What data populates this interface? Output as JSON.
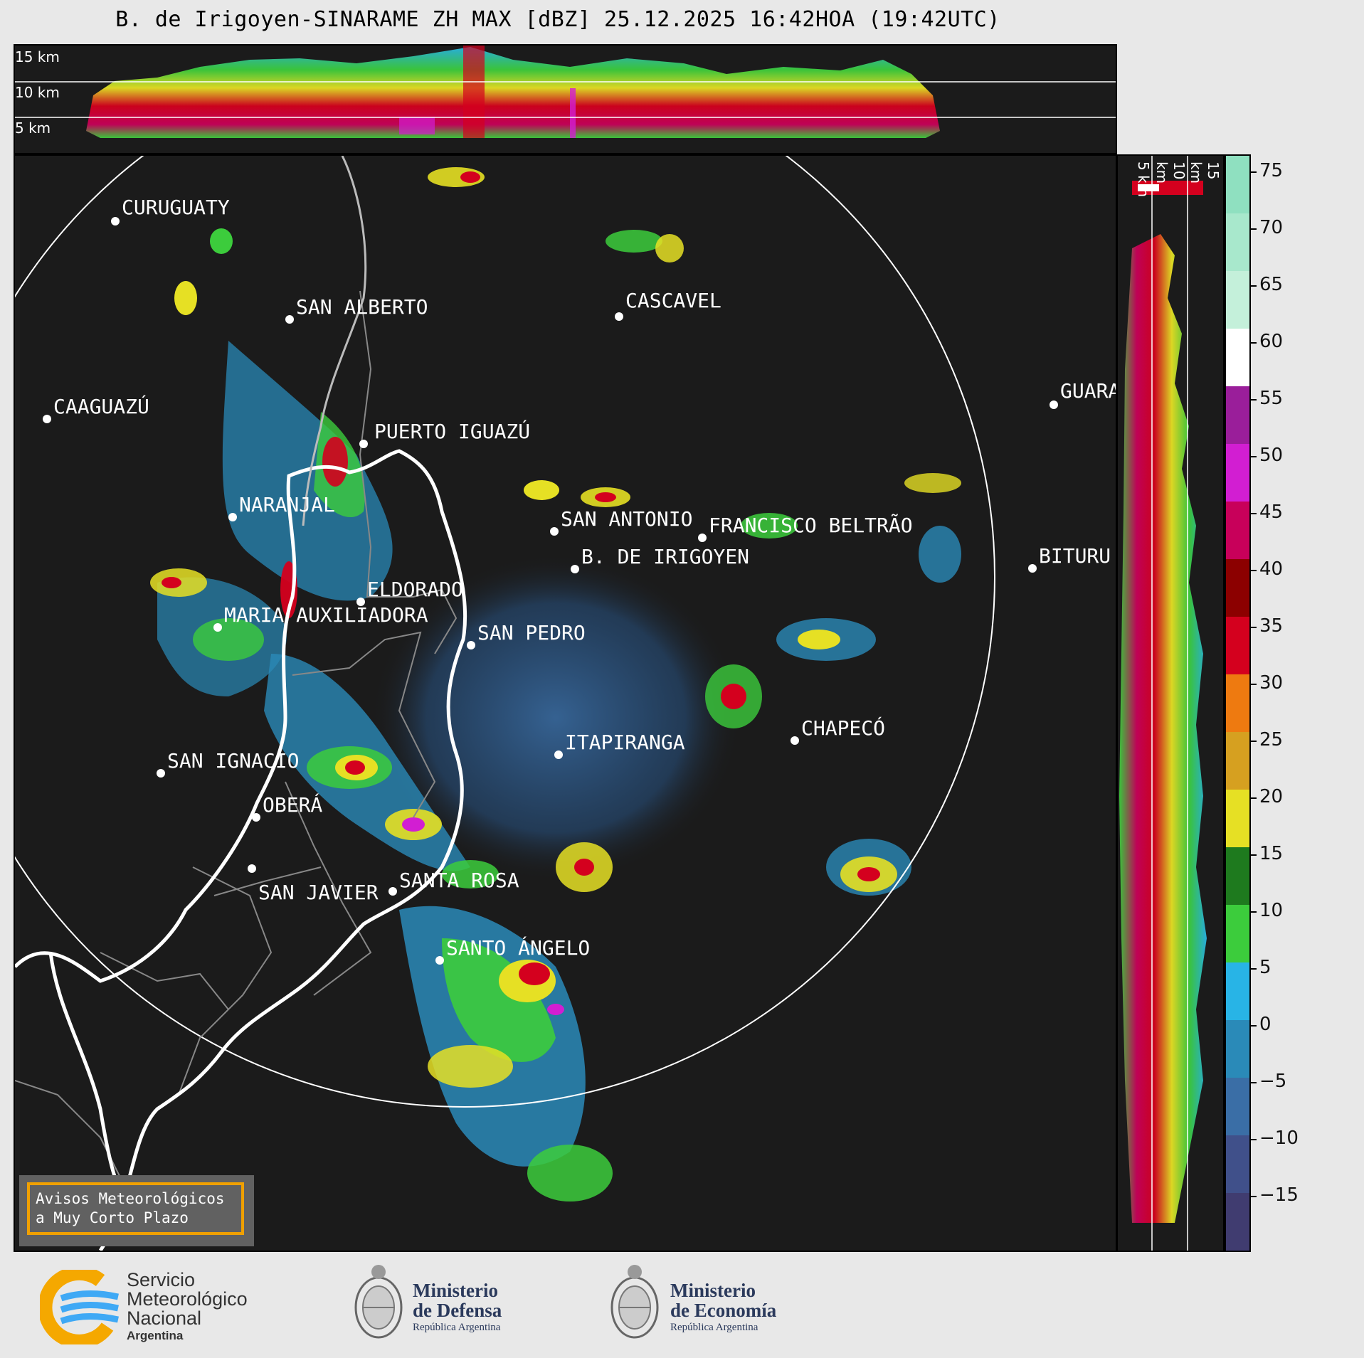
{
  "title": "B. de Irigoyen-SINARAME ZH MAX [dBZ] 25.12.2025 16:42HOA (19:42UTC)",
  "top_section_km": [
    "15 km",
    "10 km",
    "5 km"
  ],
  "right_section_km": [
    "5 km",
    "10 km",
    "15 km"
  ],
  "colorbar": {
    "unit": "dBZ",
    "ticks": [
      "75",
      "70",
      "65",
      "60",
      "55",
      "50",
      "45",
      "40",
      "35",
      "30",
      "25",
      "20",
      "15",
      "10",
      "5",
      "0",
      "−5",
      "−10",
      "−15"
    ],
    "colors": [
      "#8fe0c0",
      "#a8e8cc",
      "#c4f0da",
      "#ffffff",
      "#9a1e9a",
      "#d21ed2",
      "#c8005a",
      "#8c0000",
      "#d4001e",
      "#ee7a10",
      "#d6a020",
      "#e6e024",
      "#1e7a1e",
      "#3ccc3c",
      "#28b4e6",
      "#2a8ab8",
      "#3a6ea6",
      "#40508a",
      "#403c70"
    ]
  },
  "cities": [
    {
      "name": "CURUGUATY"
    },
    {
      "name": "SAN ALBERTO"
    },
    {
      "name": "CASCAVEL"
    },
    {
      "name": "CAAGUAZÚ"
    },
    {
      "name": "GUARA"
    },
    {
      "name": "PUERTO IGUAZÚ"
    },
    {
      "name": "NARANJAL"
    },
    {
      "name": "SAN ANTONIO"
    },
    {
      "name": "FRANCISCO BELTRÃO"
    },
    {
      "name": "BITURU"
    },
    {
      "name": "B. DE IRIGOYEN"
    },
    {
      "name": "ELDORADO"
    },
    {
      "name": "MARIA AUXILIADORA"
    },
    {
      "name": "SAN PEDRO"
    },
    {
      "name": "CHAPECÓ"
    },
    {
      "name": "ITAPIRANGA"
    },
    {
      "name": "SAN IGNACIO"
    },
    {
      "name": "OBERÁ"
    },
    {
      "name": "SAN JAVIER"
    },
    {
      "name": "SANTA ROSA"
    },
    {
      "name": "SANTO ÁNGELO"
    }
  ],
  "warning": {
    "line1": "Avisos Meteorológicos",
    "line2": "a Muy Corto Plazo"
  },
  "logos": {
    "smn": {
      "line1": "Servicio",
      "line2": "Meteorológico",
      "line3": "Nacional",
      "line4": "Argentina"
    },
    "defensa": {
      "line1": "Ministerio",
      "line2": "de Defensa",
      "line3": "República Argentina"
    },
    "economia": {
      "line1": "Ministerio",
      "line2": "de Economía",
      "line3": "República Argentina"
    }
  }
}
